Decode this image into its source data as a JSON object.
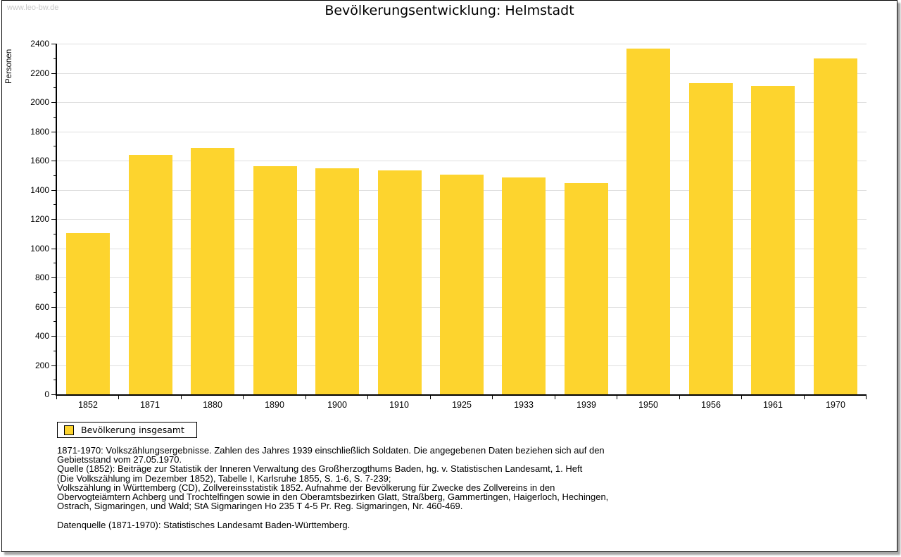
{
  "page": {
    "watermark": "www.leo-bw.de"
  },
  "chart_data": {
    "type": "bar",
    "title": "Bevölkerungsentwicklung: Helmstadt",
    "xlabel": "",
    "ylabel": "Personen",
    "categories": [
      "1852",
      "1871",
      "1880",
      "1890",
      "1900",
      "1910",
      "1925",
      "1933",
      "1939",
      "1950",
      "1956",
      "1961",
      "1970"
    ],
    "values": [
      1103,
      1640,
      1686,
      1561,
      1547,
      1532,
      1506,
      1486,
      1444,
      2367,
      2130,
      2113,
      2298
    ],
    "ylim": [
      0,
      2400
    ],
    "y_tick_step": 200,
    "y_minor_tick_step": 100,
    "grid": "horizontal",
    "legend_label": "Bevölkerung insgesamt",
    "legend_position": "bottom-left",
    "bar_color": "#FDD42E",
    "grid_color": "#DFDFDF",
    "axis_color": "#000000"
  },
  "footer": {
    "notes": [
      "1871-1970: Volkszählungsergebnisse. Zahlen des Jahres 1939 einschließlich Soldaten. Die angegebenen Daten beziehen sich auf den",
      "Gebietsstand vom 27.05.1970.",
      "Quelle (1852): Beiträge zur Statistik der Inneren Verwaltung des Großherzogthums Baden, hg. v. Statistischen Landesamt, 1. Heft",
      "(Die Volkszählung im Dezember 1852), Tabelle I, Karlsruhe 1855, S. 1-6, S. 7-239;",
      "Volkszählung in Württemberg (CD), Zollvereinsstatistik 1852. Aufnahme der Bevölkerung für Zwecke des Zollvereins in den",
      "Obervogteiämtern Achberg und Trochtelfingen sowie in den Oberamtsbezirken Glatt, Straßberg, Gammertingen, Haigerloch, Hechingen,",
      "Ostrach, Sigmaringen, und Wald; StA Sigmaringen Ho 235 T 4-5 Pr. Reg. Sigmaringen, Nr. 460-469."
    ],
    "datasource": "Datenquelle (1871-1970): Statistisches Landesamt Baden-Württemberg."
  }
}
